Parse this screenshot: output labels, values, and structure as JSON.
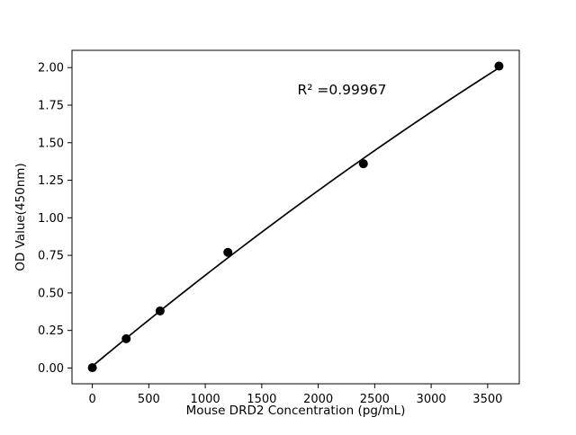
{
  "chart_data": {
    "type": "scatter",
    "title": "",
    "xlabel": "Mouse DRD2 Concentration (pg/mL)",
    "ylabel": "OD Value(450nm)",
    "annotation": "R² =0.99967",
    "x": [
      0,
      300,
      600,
      1200,
      2400,
      3600
    ],
    "y": [
      0.002,
      0.195,
      0.38,
      0.77,
      1.36,
      2.01
    ],
    "fit": "quadratic",
    "xlim": [
      -180,
      3780
    ],
    "ylim": [
      -0.105,
      2.115
    ],
    "xticks": [
      0,
      500,
      1000,
      1500,
      2000,
      2500,
      3000,
      3500
    ],
    "xtick_labels": [
      "0",
      "500",
      "1000",
      "1500",
      "2000",
      "2500",
      "3000",
      "3500"
    ],
    "yticks": [
      0,
      0.25,
      0.5,
      0.75,
      1,
      1.25,
      1.5,
      1.75,
      2
    ],
    "ytick_labels": [
      "0.00",
      "0.25",
      "0.50",
      "0.75",
      "1.00",
      "1.25",
      "1.50",
      "1.75",
      "2.00"
    ],
    "marker_color": "#000000",
    "line_color": "#000000",
    "background": "#ffffff",
    "legend": "none",
    "grid": false
  }
}
